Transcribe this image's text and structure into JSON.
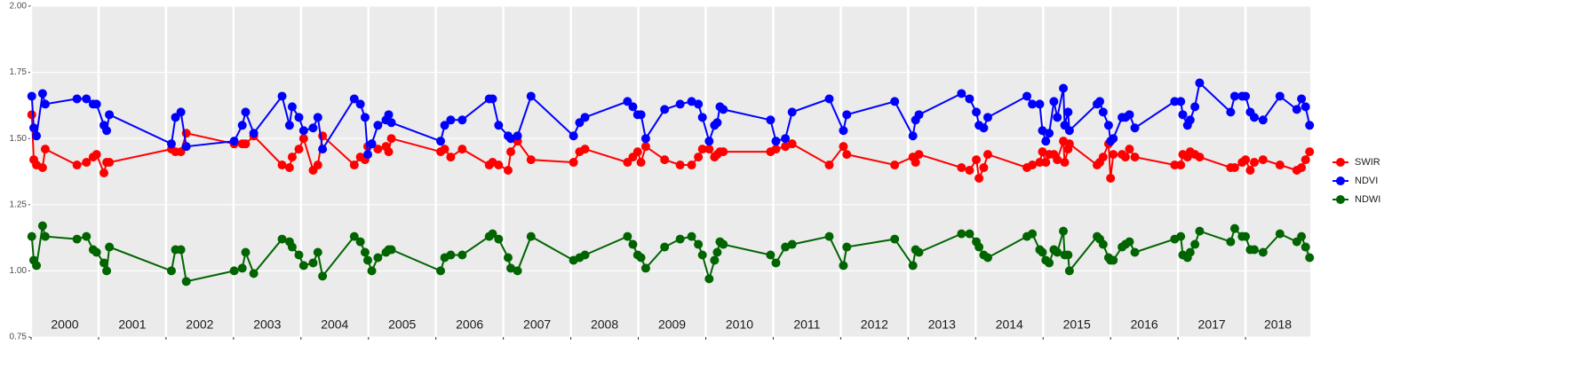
{
  "chart_data": {
    "type": "line",
    "x": [
      2000.01,
      2000.04,
      2000.08,
      2000.17,
      2000.21,
      2000.68,
      2000.82,
      2000.92,
      2000.97,
      2001.08,
      2001.12,
      2001.16,
      2002.08,
      2002.14,
      2002.22,
      2002.3,
      2003.01,
      2003.13,
      2003.18,
      2003.3,
      2003.72,
      2003.83,
      2003.87,
      2003.97,
      2004.04,
      2004.18,
      2004.25,
      2004.32,
      2004.79,
      2004.88,
      2004.95,
      2004.99,
      2005.05,
      2005.14,
      2005.26,
      2005.3,
      2005.34,
      2006.07,
      2006.13,
      2006.22,
      2006.39,
      2006.79,
      2006.84,
      2006.93,
      2007.07,
      2007.11,
      2007.21,
      2007.41,
      2008.04,
      2008.13,
      2008.21,
      2008.84,
      2008.92,
      2008.99,
      2009.04,
      2009.11,
      2009.39,
      2009.62,
      2009.79,
      2009.89,
      2009.95,
      2010.05,
      2010.13,
      2010.17,
      2010.21,
      2010.26,
      2010.96,
      2011.04,
      2011.18,
      2011.28,
      2011.83,
      2012.04,
      2012.09,
      2012.8,
      2013.07,
      2013.11,
      2013.16,
      2013.79,
      2013.91,
      2014.01,
      2014.05,
      2014.12,
      2014.18,
      2014.76,
      2014.84,
      2014.95,
      2014.99,
      2015.04,
      2015.09,
      2015.16,
      2015.21,
      2015.3,
      2015.32,
      2015.37,
      2015.39,
      2015.8,
      2015.84,
      2015.89,
      2015.97,
      2016.0,
      2016.04,
      2016.17,
      2016.22,
      2016.28,
      2016.36,
      2016.95,
      2017.04,
      2017.07,
      2017.14,
      2017.18,
      2017.25,
      2017.32,
      2017.78,
      2017.84,
      2017.95,
      2018.0,
      2018.07,
      2018.13,
      2018.26,
      2018.51,
      2018.76,
      2018.83,
      2018.89,
      2018.95
    ],
    "series": [
      {
        "name": "SWIR",
        "color": "#ff0000",
        "values": [
          1.59,
          1.42,
          1.4,
          1.39,
          1.46,
          1.4,
          1.41,
          1.43,
          1.44,
          1.37,
          1.41,
          1.41,
          1.46,
          1.45,
          1.45,
          1.52,
          1.48,
          1.48,
          1.48,
          1.51,
          1.4,
          1.39,
          1.43,
          1.46,
          1.5,
          1.38,
          1.4,
          1.51,
          1.4,
          1.43,
          1.42,
          1.47,
          1.48,
          1.46,
          1.47,
          1.45,
          1.5,
          1.45,
          1.46,
          1.43,
          1.46,
          1.4,
          1.41,
          1.4,
          1.38,
          1.45,
          1.49,
          1.42,
          1.41,
          1.45,
          1.46,
          1.41,
          1.43,
          1.45,
          1.41,
          1.47,
          1.42,
          1.4,
          1.4,
          1.43,
          1.46,
          1.46,
          1.43,
          1.44,
          1.45,
          1.45,
          1.45,
          1.46,
          1.47,
          1.48,
          1.4,
          1.47,
          1.44,
          1.4,
          1.43,
          1.41,
          1.44,
          1.39,
          1.38,
          1.42,
          1.35,
          1.39,
          1.44,
          1.39,
          1.4,
          1.41,
          1.45,
          1.41,
          1.44,
          1.44,
          1.42,
          1.49,
          1.41,
          1.46,
          1.48,
          1.4,
          1.41,
          1.43,
          1.48,
          1.35,
          1.44,
          1.44,
          1.43,
          1.46,
          1.43,
          1.4,
          1.4,
          1.44,
          1.43,
          1.45,
          1.44,
          1.43,
          1.39,
          1.39,
          1.41,
          1.42,
          1.38,
          1.41,
          1.42,
          1.4,
          1.38,
          1.39,
          1.42,
          1.45
        ]
      },
      {
        "name": "NDVI",
        "color": "#0000ff",
        "values": [
          1.66,
          1.54,
          1.51,
          1.67,
          1.63,
          1.65,
          1.65,
          1.63,
          1.63,
          1.55,
          1.53,
          1.59,
          1.48,
          1.58,
          1.6,
          1.47,
          1.49,
          1.55,
          1.6,
          1.52,
          1.66,
          1.55,
          1.62,
          1.58,
          1.53,
          1.54,
          1.58,
          1.46,
          1.65,
          1.63,
          1.58,
          1.44,
          1.48,
          1.55,
          1.57,
          1.59,
          1.56,
          1.49,
          1.55,
          1.57,
          1.57,
          1.65,
          1.65,
          1.55,
          1.51,
          1.5,
          1.51,
          1.66,
          1.51,
          1.56,
          1.58,
          1.64,
          1.62,
          1.59,
          1.59,
          1.5,
          1.61,
          1.63,
          1.64,
          1.63,
          1.58,
          1.49,
          1.55,
          1.56,
          1.62,
          1.61,
          1.57,
          1.49,
          1.5,
          1.6,
          1.65,
          1.53,
          1.59,
          1.64,
          1.51,
          1.57,
          1.59,
          1.67,
          1.65,
          1.6,
          1.55,
          1.54,
          1.58,
          1.66,
          1.63,
          1.63,
          1.53,
          1.49,
          1.52,
          1.64,
          1.58,
          1.69,
          1.55,
          1.6,
          1.53,
          1.63,
          1.64,
          1.6,
          1.55,
          1.49,
          1.5,
          1.58,
          1.58,
          1.59,
          1.54,
          1.64,
          1.64,
          1.59,
          1.55,
          1.57,
          1.62,
          1.71,
          1.6,
          1.66,
          1.66,
          1.66,
          1.6,
          1.58,
          1.57,
          1.66,
          1.61,
          1.65,
          1.62,
          1.55
        ]
      },
      {
        "name": "NDWI",
        "color": "#006400",
        "values": [
          1.13,
          1.04,
          1.02,
          1.17,
          1.13,
          1.12,
          1.13,
          1.08,
          1.07,
          1.03,
          1.0,
          1.09,
          1.0,
          1.08,
          1.08,
          0.96,
          1.0,
          1.01,
          1.07,
          0.99,
          1.12,
          1.11,
          1.09,
          1.06,
          1.02,
          1.03,
          1.07,
          0.98,
          1.13,
          1.11,
          1.07,
          1.04,
          1.0,
          1.05,
          1.07,
          1.08,
          1.08,
          1.0,
          1.05,
          1.06,
          1.06,
          1.13,
          1.14,
          1.12,
          1.05,
          1.01,
          1.0,
          1.13,
          1.04,
          1.05,
          1.06,
          1.13,
          1.1,
          1.06,
          1.05,
          1.01,
          1.09,
          1.12,
          1.13,
          1.1,
          1.06,
          0.97,
          1.04,
          1.07,
          1.11,
          1.1,
          1.06,
          1.03,
          1.09,
          1.1,
          1.13,
          1.02,
          1.09,
          1.12,
          1.02,
          1.08,
          1.07,
          1.14,
          1.14,
          1.11,
          1.09,
          1.06,
          1.05,
          1.13,
          1.14,
          1.08,
          1.07,
          1.04,
          1.03,
          1.08,
          1.07,
          1.15,
          1.06,
          1.06,
          1.0,
          1.13,
          1.12,
          1.1,
          1.05,
          1.04,
          1.04,
          1.09,
          1.1,
          1.11,
          1.07,
          1.12,
          1.13,
          1.06,
          1.05,
          1.07,
          1.1,
          1.15,
          1.11,
          1.16,
          1.13,
          1.13,
          1.08,
          1.08,
          1.07,
          1.14,
          1.11,
          1.13,
          1.09,
          1.05
        ]
      }
    ],
    "xlim": [
      2000,
      2018.96
    ],
    "xticks": [
      2000,
      2001,
      2002,
      2003,
      2004,
      2005,
      2006,
      2007,
      2008,
      2009,
      2010,
      2011,
      2012,
      2013,
      2014,
      2015,
      2016,
      2017,
      2018
    ],
    "year_labels": [
      "2000",
      "2001",
      "2002",
      "2003",
      "2004",
      "2005",
      "2006",
      "2007",
      "2008",
      "2009",
      "2010",
      "2011",
      "2012",
      "2013",
      "2014",
      "2015",
      "2016",
      "2017",
      "2018"
    ],
    "ylim": [
      0.75,
      2.0
    ],
    "yticks": [
      {
        "value": 0.75,
        "label": "0.75"
      },
      {
        "value": 1.0,
        "label": "1.00"
      },
      1.25,
      {
        "value": 1.5,
        "label": "1.50"
      },
      1.75,
      {
        "value": 2.0,
        "label": "2.00"
      }
    ],
    "grid": true,
    "legend": "right"
  }
}
